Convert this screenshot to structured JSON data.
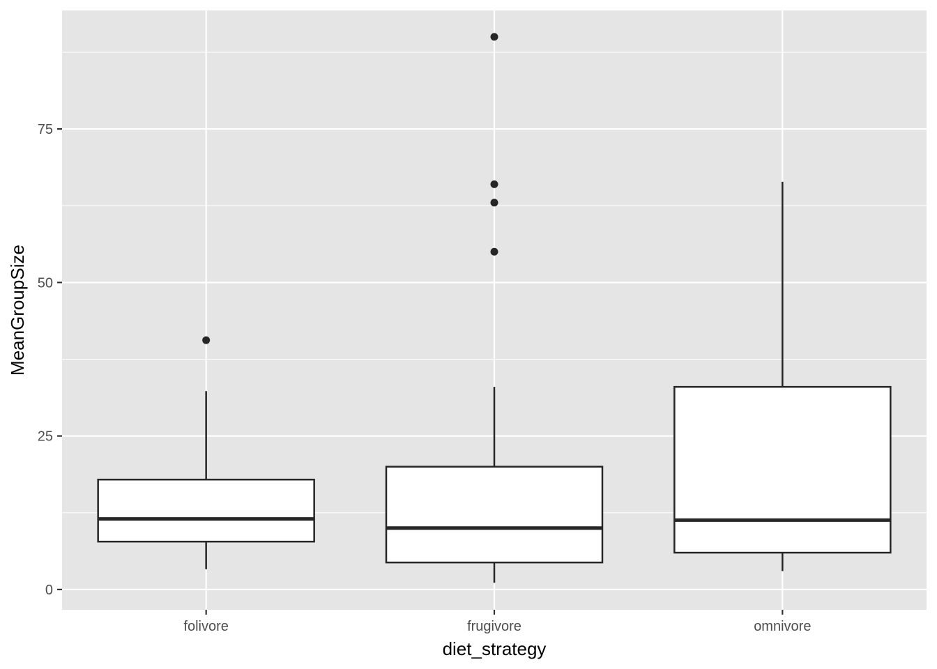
{
  "chart_data": {
    "type": "boxplot",
    "title": "",
    "xlabel": "diet_strategy",
    "ylabel": "MeanGroupSize",
    "ylim": [
      -3.3,
      94.3
    ],
    "y_ticks": [
      0,
      25,
      50,
      75
    ],
    "y_minor_ticks": [
      12.5,
      37.5,
      62.5,
      87.5
    ],
    "grid": true,
    "legend": "none",
    "colors": {
      "panel": "#e5e5e5",
      "grid": "#ffffff",
      "box_fill": "#ffffff",
      "box_line": "#262626",
      "tick_text": "#4d4d4d",
      "axis_title": "#000000"
    },
    "categories": [
      "folivore",
      "frugivore",
      "omnivore"
    ],
    "boxes": [
      {
        "category": "folivore",
        "whisker_low": 3.3,
        "q1": 7.8,
        "median": 11.5,
        "q3": 17.9,
        "whisker_high": 32.3,
        "outliers": [
          40.6
        ]
      },
      {
        "category": "frugivore",
        "whisker_low": 1.1,
        "q1": 4.4,
        "median": 10.0,
        "q3": 20.0,
        "whisker_high": 33.0,
        "outliers": [
          90.0,
          66.0,
          63.0,
          55.0
        ]
      },
      {
        "category": "omnivore",
        "whisker_low": 3.0,
        "q1": 6.0,
        "median": 11.3,
        "q3": 33.0,
        "whisker_high": 66.4,
        "outliers": []
      }
    ]
  }
}
